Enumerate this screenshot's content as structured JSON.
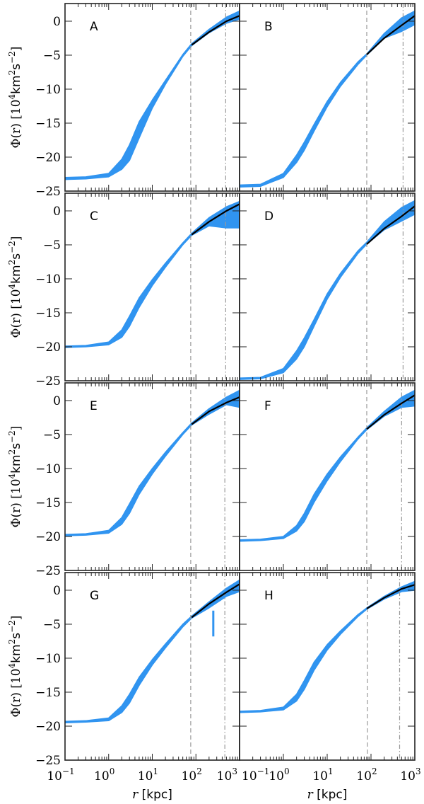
{
  "chart_data": {
    "type": "area",
    "layout": "4 rows x 2 columns, shared axes",
    "xscale": "log",
    "xlim": [
      0.1,
      1000
    ],
    "ylim": [
      -25,
      2.6
    ],
    "grid": false,
    "band_color": "#3094f0",
    "fit_color": "#000000",
    "vline_color": "#999999",
    "xlabel": {
      "var": "r",
      "unit": "[kpc]"
    },
    "ylabel": {
      "var": "Φ(r)",
      "unit_pre": "[10",
      "unit_exp1": "4",
      "unit_mid": "km",
      "unit_exp2": "2",
      "unit_mid2": "s",
      "unit_exp3": "−2",
      "unit_post": "]"
    },
    "x_ticks": [
      {
        "value": 0.1,
        "base": "10",
        "exp": "−1"
      },
      {
        "value": 1,
        "base": "10",
        "exp": "0"
      },
      {
        "value": 10,
        "base": "10",
        "exp": "1"
      },
      {
        "value": 100,
        "base": "10",
        "exp": "2"
      },
      {
        "value": 1000,
        "base": "10",
        "exp": "3"
      }
    ],
    "y_ticks": [
      -25,
      -20,
      -15,
      -10,
      -5,
      0
    ],
    "y_tick_labels": [
      "−25",
      "−20",
      "−15",
      "−10",
      "−5",
      "0"
    ],
    "r": [
      0.1,
      0.3,
      1,
      2,
      3,
      5,
      10,
      20,
      50,
      80,
      200,
      500,
      1000
    ],
    "fit_r": [
      80,
      200,
      500,
      1000
    ],
    "panels": [
      {
        "label": "A",
        "phi_lower": [
          -23.3,
          -23.2,
          -22.9,
          -21.8,
          -20.5,
          -17.2,
          -12.8,
          -9.3,
          -5.2,
          -3.6,
          -1.7,
          -0.3,
          0.3
        ],
        "phi_upper": [
          -23.0,
          -22.9,
          -22.4,
          -20.3,
          -18.2,
          -14.8,
          -11.6,
          -8.7,
          -4.9,
          -3.3,
          -1.2,
          0.6,
          1.5
        ],
        "fit_phi": [
          -3.5,
          -1.6,
          0.0,
          0.8
        ],
        "dashed_r": 76,
        "dashdot_r": 480
      },
      {
        "label": "B",
        "phi_lower": [
          -24.4,
          -24.3,
          -23.0,
          -20.8,
          -19.0,
          -16.2,
          -12.6,
          -9.6,
          -6.4,
          -5.0,
          -2.5,
          -1.5,
          -0.5
        ],
        "phi_upper": [
          -24.1,
          -24.0,
          -22.4,
          -19.7,
          -17.8,
          -15.2,
          -11.8,
          -9.0,
          -6.0,
          -4.8,
          -1.8,
          0.5,
          1.5
        ],
        "fit_phi": [
          -4.9,
          -2.5,
          -0.6,
          0.8
        ],
        "dashed_r": 80,
        "dashdot_r": 540
      },
      {
        "label": "C",
        "phi_lower": [
          -20.1,
          -20.0,
          -19.7,
          -18.6,
          -17.0,
          -14.2,
          -11.0,
          -8.3,
          -5.0,
          -3.6,
          -2.2,
          -2.5,
          -2.5
        ],
        "phi_upper": [
          -19.9,
          -19.8,
          -19.3,
          -17.5,
          -15.5,
          -12.8,
          -10.1,
          -7.7,
          -4.7,
          -3.3,
          -1.0,
          0.6,
          1.4
        ],
        "fit_phi": [
          -3.5,
          -1.6,
          0.0,
          1.0
        ],
        "dashed_r": 76,
        "dashdot_r": 480
      },
      {
        "label": "D",
        "phi_lower": [
          -24.8,
          -24.7,
          -23.8,
          -21.8,
          -20.0,
          -17.0,
          -13.0,
          -9.8,
          -6.3,
          -4.9,
          -2.8,
          -1.5,
          -0.5
        ],
        "phi_upper": [
          -24.6,
          -24.5,
          -23.2,
          -20.6,
          -18.7,
          -16.0,
          -12.2,
          -9.2,
          -5.9,
          -4.6,
          -1.6,
          0.5,
          1.5
        ],
        "fit_phi": [
          -4.9,
          -2.6,
          -0.8,
          0.7
        ],
        "dashed_r": 80,
        "dashdot_r": 540
      },
      {
        "label": "E",
        "phi_lower": [
          -19.9,
          -19.8,
          -19.5,
          -18.2,
          -16.6,
          -13.8,
          -10.8,
          -8.2,
          -5.0,
          -3.6,
          -2.0,
          -0.6,
          -1.0
        ],
        "phi_upper": [
          -19.7,
          -19.6,
          -19.1,
          -17.2,
          -15.2,
          -12.6,
          -10.0,
          -7.6,
          -4.7,
          -3.3,
          -1.2,
          0.5,
          1.5
        ],
        "fit_phi": [
          -3.5,
          -1.6,
          -0.3,
          0.5
        ],
        "dashed_r": 76,
        "dashdot_r": 460
      },
      {
        "label": "F",
        "phi_lower": [
          -20.7,
          -20.6,
          -20.3,
          -19.2,
          -17.8,
          -15.0,
          -11.8,
          -9.0,
          -5.7,
          -4.3,
          -2.3,
          -1.0,
          -0.8
        ],
        "phi_upper": [
          -20.5,
          -20.4,
          -20.0,
          -18.4,
          -16.6,
          -13.8,
          -10.8,
          -8.3,
          -5.4,
          -4.0,
          -1.6,
          0.5,
          1.5
        ],
        "fit_phi": [
          -4.2,
          -2.1,
          -0.4,
          0.8
        ],
        "dashed_r": 80,
        "dashdot_r": 500
      },
      {
        "label": "G",
        "phi_lower": [
          -19.5,
          -19.4,
          -19.2,
          -18.0,
          -16.6,
          -14.0,
          -11.0,
          -8.5,
          -5.4,
          -4.1,
          -2.6,
          -0.9,
          -0.2
        ],
        "phi_upper": [
          -19.3,
          -19.2,
          -18.8,
          -17.0,
          -15.3,
          -12.8,
          -10.2,
          -7.9,
          -5.0,
          -3.8,
          -1.7,
          0.3,
          1.5
        ],
        "fit_phi": [
          -4.0,
          -2.0,
          -0.3,
          0.9
        ],
        "dashed_r": 76,
        "dashdot_r": 460,
        "spike": {
          "r": 250,
          "phi_min": -6.8
        }
      },
      {
        "label": "H",
        "phi_lower": [
          -18.0,
          -17.9,
          -17.6,
          -16.3,
          -14.6,
          -11.8,
          -8.8,
          -6.5,
          -3.9,
          -2.8,
          -1.3,
          -0.2,
          0.0
        ],
        "phi_upper": [
          -17.8,
          -17.7,
          -17.2,
          -15.3,
          -13.3,
          -10.6,
          -8.0,
          -6.0,
          -3.6,
          -2.6,
          -0.9,
          0.5,
          1.3
        ],
        "fit_phi": [
          -2.7,
          -1.1,
          0.2,
          0.8
        ],
        "dashed_r": 83,
        "dashdot_r": 450
      }
    ]
  }
}
